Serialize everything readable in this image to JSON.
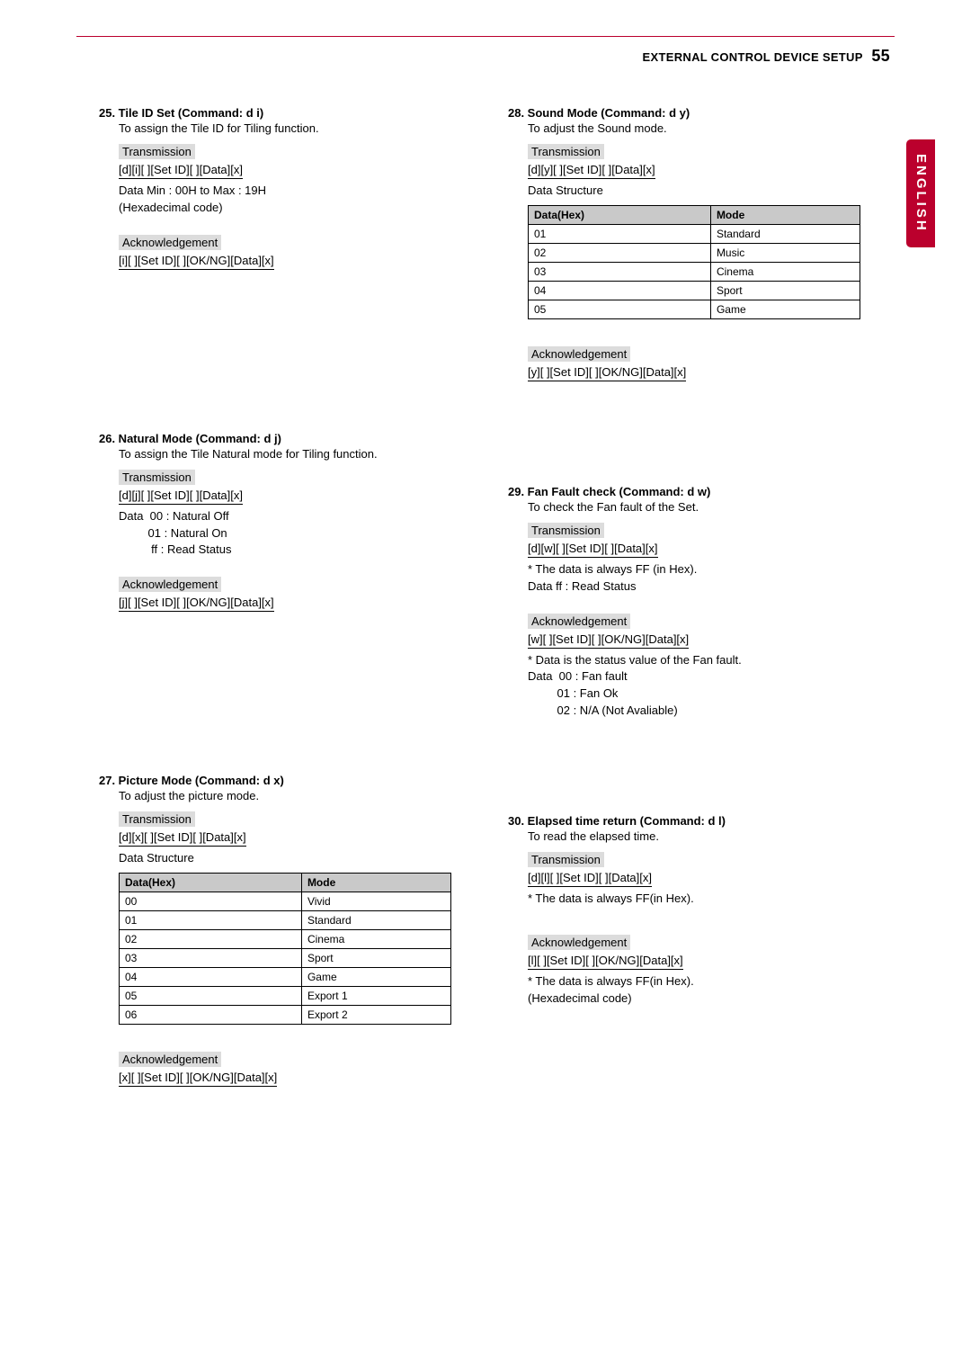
{
  "header": {
    "title": "EXTERNAL CONTROL DEVICE SETUP",
    "page": "55"
  },
  "side_tab": "ENGLISH",
  "labels": {
    "transmission": "Transmission",
    "acknowledgement": "Acknowledgement"
  },
  "table_headers": {
    "data_hex": "Data(Hex)",
    "mode": "Mode"
  },
  "s25": {
    "title": "25. Tile ID Set (Command: d i)",
    "desc": "To assign the Tile ID for Tiling function.",
    "tx": "[d][i][ ][Set ID][ ][Data][x]",
    "note": "Data Min : 00H to Max : 19H\n(Hexadecimal code)",
    "ack": "[i][ ][Set ID][ ][OK/NG][Data][x]"
  },
  "s26": {
    "title": "26. Natural Mode (Command: d j)",
    "desc": "To assign the Tile Natural mode for Tiling function.",
    "tx": "[d][j][ ][Set ID][ ][Data][x]",
    "note": "Data  00 : Natural Off\n         01 : Natural On\n          ff : Read Status",
    "ack": "[j][ ][Set ID][ ][OK/NG][Data][x]"
  },
  "s27": {
    "title": "27. Picture Mode (Command: d x)",
    "desc": "To adjust the picture mode.",
    "tx": "[d][x][ ][Set ID][ ][Data][x]",
    "ds_label": "Data Structure",
    "rows": [
      [
        "00",
        "Vivid"
      ],
      [
        "01",
        "Standard"
      ],
      [
        "02",
        "Cinema"
      ],
      [
        "03",
        "Sport"
      ],
      [
        "04",
        "Game"
      ],
      [
        "05",
        "Export 1"
      ],
      [
        "06",
        "Export 2"
      ]
    ],
    "ack": "[x][ ][Set ID][ ][OK/NG][Data][x]"
  },
  "s28": {
    "title": "28. Sound Mode (Command: d y)",
    "desc": "To adjust the Sound mode.",
    "tx": "[d][y][ ][Set ID][ ][Data][x]",
    "ds_label": "Data Structure",
    "rows": [
      [
        "01",
        "Standard"
      ],
      [
        "02",
        "Music"
      ],
      [
        "03",
        "Cinema"
      ],
      [
        "04",
        "Sport"
      ],
      [
        "05",
        "Game"
      ]
    ],
    "ack": "[y][ ][Set ID][ ][OK/NG][Data][x]"
  },
  "s29": {
    "title": "29. Fan Fault check (Command: d w)",
    "desc": "To check the Fan fault of the Set.",
    "tx": "[d][w][ ][Set ID][ ][Data][x]",
    "tx_note": "* The data is always FF (in Hex).\nData ff : Read Status",
    "ack": "[w][ ][Set ID][ ][OK/NG][Data][x]",
    "ack_note": "* Data is the status value of the Fan fault.\nData  00 : Fan fault\n         01 : Fan Ok\n         02 : N/A (Not Avaliable)"
  },
  "s30": {
    "title": "30. Elapsed time return (Command: d l)",
    "desc": "To read the elapsed time.",
    "tx": "[d][l][ ][Set ID][ ][Data][x]",
    "tx_note": "* The data is always FF(in Hex).",
    "ack": "[l][ ][Set ID][ ][OK/NG][Data][x]",
    "ack_note": "* The data is always FF(in Hex).\n(Hexadecimal code)"
  }
}
